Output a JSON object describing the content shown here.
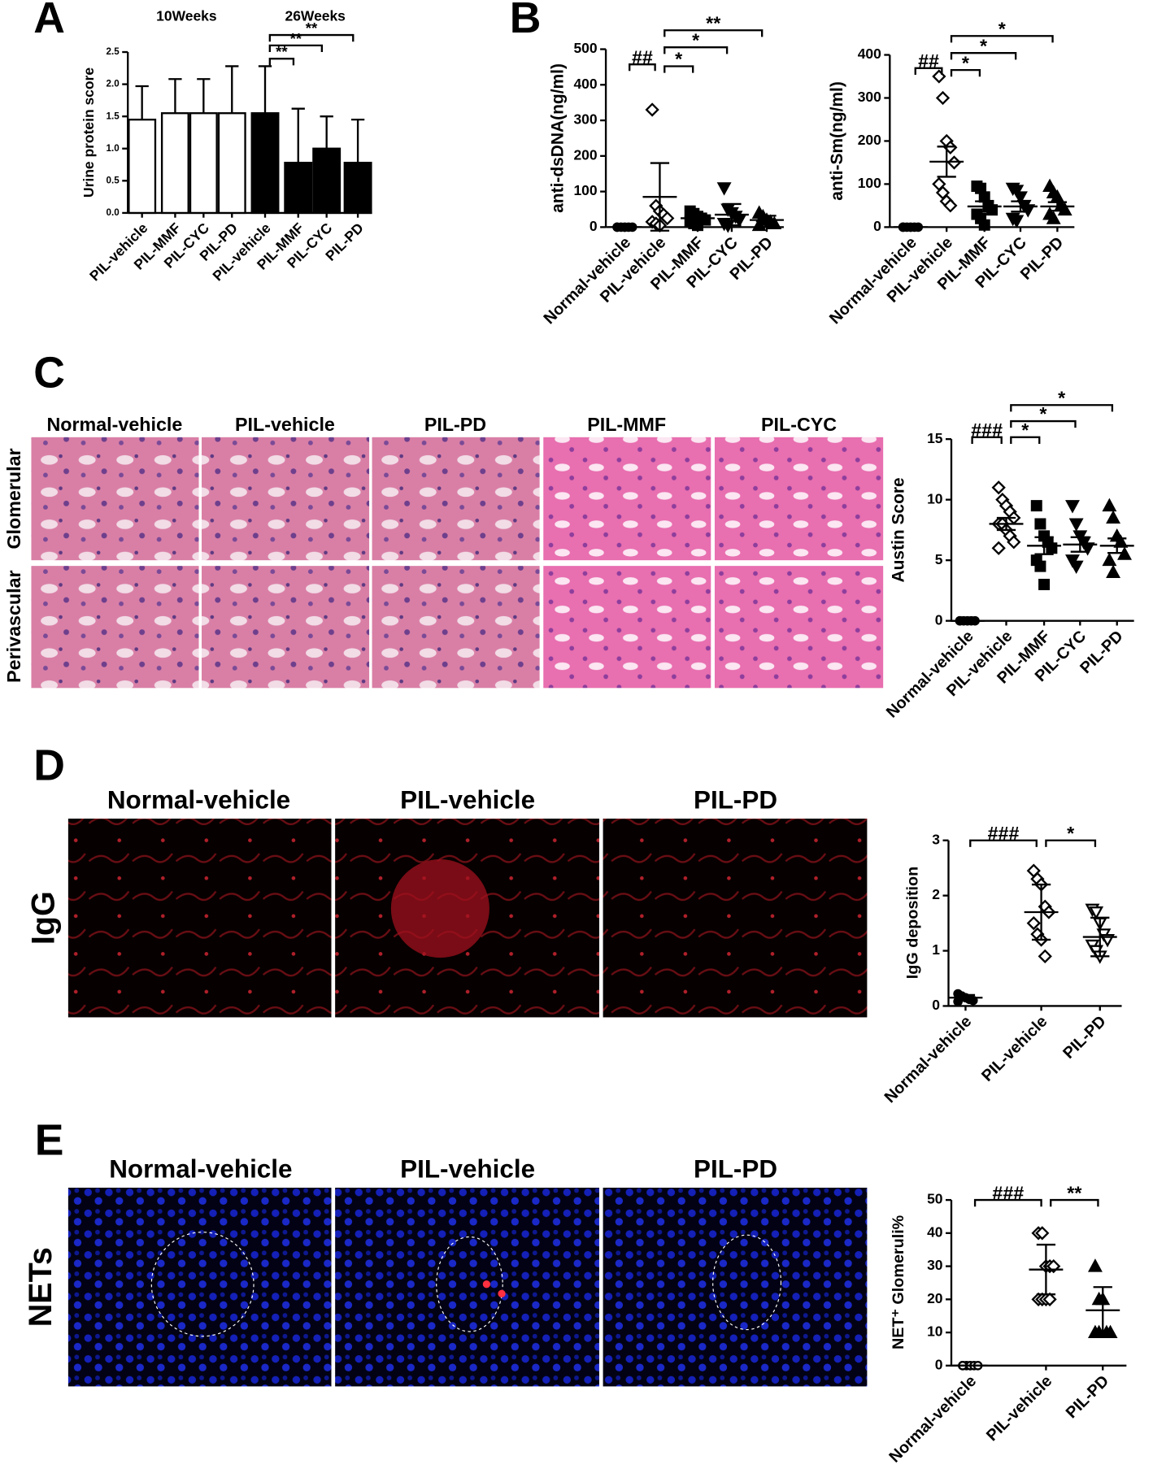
{
  "figure": {
    "letters": [
      "A",
      "B",
      "C",
      "D",
      "E"
    ],
    "c_columns": [
      "Normal-vehicle",
      "PIL-vehicle",
      "PIL-PD",
      "PIL-MMF",
      "PIL-CYC"
    ],
    "c_rows": [
      "Glomerular",
      "Perivascular"
    ],
    "d_columns": [
      "Normal-vehicle",
      "PIL-vehicle",
      "PIL-PD"
    ],
    "d_row": "IgG",
    "e_columns": [
      "Normal-vehicle",
      "PIL-vehicle",
      "PIL-PD"
    ],
    "e_row": "NETs"
  },
  "chart_data": [
    {
      "type": "bar",
      "ylabel": "Urine protein score",
      "group_labels": [
        "10Weeks",
        "26Weeks"
      ],
      "categories": [
        "PIL-vehicle",
        "PIL-MMF",
        "PIL-CYC",
        "PIL-PD",
        "PIL-vehicle",
        "PIL-MMF",
        "PIL-CYC",
        "PIL-PD"
      ],
      "values": [
        1.45,
        1.55,
        1.55,
        1.55,
        1.55,
        0.78,
        1.0,
        0.78
      ],
      "errors": [
        0.52,
        0.53,
        0.53,
        0.73,
        0.73,
        0.84,
        0.5,
        0.67
      ],
      "colors": [
        "#ffffff",
        "#ffffff",
        "#ffffff",
        "#ffffff",
        "#000000",
        "#000000",
        "#000000",
        "#000000"
      ],
      "ylim": [
        0,
        2.5
      ],
      "yticks": [
        {
          "value": 0,
          "label": "0.0"
        },
        0.5,
        {
          "value": 1,
          "label": "1.0"
        },
        1.5,
        {
          "value": 2,
          "label": "2.0"
        },
        2.5
      ],
      "brackets": [
        "**",
        "**",
        "**"
      ]
    },
    {
      "type": "dot",
      "ylabel": "anti-dsDNA(ng/ml)",
      "categories": [
        "Normal-vehicle",
        "PIL-vehicle",
        "PIL-MMF",
        "PIL-CYC",
        "PIL-PD"
      ],
      "markers": [
        "circle",
        "diamond-open",
        "square",
        "triangle-down",
        "triangle-up"
      ],
      "points": [
        [
          0,
          0,
          0,
          0,
          0,
          0
        ],
        [
          330,
          60,
          45,
          35,
          25,
          15,
          10,
          5
        ],
        [
          45,
          38,
          30,
          25,
          20,
          15,
          10,
          5
        ],
        [
          110,
          50,
          40,
          30,
          20,
          10,
          5
        ],
        [
          40,
          30,
          20,
          15,
          10,
          5
        ]
      ],
      "means": [
        0,
        85,
        25,
        35,
        20
      ],
      "errors": [
        0,
        95,
        10,
        30,
        12
      ],
      "ylim": [
        0,
        500
      ],
      "yticks": [
        0,
        100,
        200,
        300,
        400,
        500
      ],
      "brackets": [
        "##",
        "*",
        "*",
        "**"
      ]
    },
    {
      "type": "dot",
      "ylabel": "anti-Sm(ng/ml)",
      "categories": [
        "Normal-vehicle",
        "PIL-vehicle",
        "PIL-MMF",
        "PIL-CYC",
        "PIL-PD"
      ],
      "markers": [
        "circle",
        "diamond-open",
        "square",
        "triangle-down",
        "triangle-up"
      ],
      "points": [
        [
          0,
          0,
          0,
          0,
          0,
          0
        ],
        [
          350,
          300,
          200,
          185,
          150,
          100,
          80,
          60,
          50
        ],
        [
          95,
          90,
          70,
          50,
          40,
          30,
          20,
          5
        ],
        [
          90,
          85,
          70,
          50,
          40,
          20,
          15
        ],
        [
          95,
          80,
          70,
          50,
          40,
          30,
          20
        ]
      ],
      "means": [
        0,
        152,
        48,
        48,
        48
      ],
      "errors": [
        0,
        35,
        12,
        12,
        10
      ],
      "ylim": [
        0,
        400
      ],
      "yticks": [
        0,
        100,
        200,
        300,
        400
      ],
      "brackets": [
        "##",
        "*",
        "*",
        "*"
      ]
    },
    {
      "type": "dot",
      "ylabel": "Austin Score",
      "categories": [
        "Normal-vehicle",
        "PIL-vehicle",
        "PIL-MMF",
        "PIL-CYC",
        "PIL-PD"
      ],
      "markers": [
        "circle",
        "diamond-open",
        "square",
        "triangle-down",
        "triangle-up"
      ],
      "points": [
        [
          0,
          0,
          0,
          0,
          0,
          0
        ],
        [
          11,
          10,
          9.5,
          9,
          8.5,
          8,
          8,
          7.5,
          7,
          6.5,
          6
        ],
        [
          9.5,
          8,
          7,
          6.5,
          6,
          5,
          4.5,
          3
        ],
        [
          9.5,
          8,
          7,
          6.5,
          6,
          5,
          4.5
        ],
        [
          9.5,
          8.5,
          7,
          6.5,
          5.5,
          5,
          4
        ]
      ],
      "means": [
        0,
        8,
        6.2,
        6.3,
        6.2
      ],
      "errors": [
        0,
        0.5,
        0.7,
        0.6,
        0.6
      ],
      "ylim": [
        0,
        15
      ],
      "yticks": [
        0,
        5,
        10,
        15
      ],
      "brackets": [
        "###",
        "*",
        "*",
        "*"
      ]
    },
    {
      "type": "dot",
      "ylabel": "IgG deposition",
      "categories": [
        "Normal-vehicle",
        "PIL-vehicle",
        "PIL-PD"
      ],
      "markers": [
        "circle",
        "diamond-open",
        "triangle-down-open"
      ],
      "points": [
        [
          0.22,
          0.18,
          0.15,
          0.12,
          0.1,
          0.08
        ],
        [
          2.45,
          2.3,
          2.2,
          1.8,
          1.7,
          1.5,
          1.3,
          1.2,
          0.9
        ],
        [
          1.75,
          1.7,
          1.5,
          1.3,
          1.2,
          1.1,
          1.0,
          0.9
        ]
      ],
      "means": [
        0.15,
        1.7,
        1.25
      ],
      "errors": [
        0.05,
        0.5,
        0.35
      ],
      "ylim": [
        0,
        3
      ],
      "yticks": [
        0,
        1,
        2,
        3
      ],
      "brackets": [
        "###",
        "*"
      ]
    },
    {
      "type": "dot",
      "ylabel": "NET⁺ Glomeruli%",
      "categories": [
        "Normal-vehicle",
        "PIL-vehicle",
        "PIL-PD"
      ],
      "markers": [
        "circle-open",
        "diamond-open",
        "triangle-up"
      ],
      "points": [
        [
          0,
          0,
          0,
          0,
          0,
          0
        ],
        [
          40,
          40,
          30,
          30,
          30,
          20,
          20,
          20,
          20
        ],
        [
          30,
          20,
          20,
          10,
          10,
          10,
          10
        ]
      ],
      "means": [
        0,
        29,
        16.7
      ],
      "errors": [
        0,
        7.5,
        7
      ],
      "ylim": [
        0,
        50
      ],
      "yticks": [
        0,
        10,
        20,
        30,
        40,
        50
      ],
      "brackets": [
        "###",
        "**"
      ]
    }
  ]
}
